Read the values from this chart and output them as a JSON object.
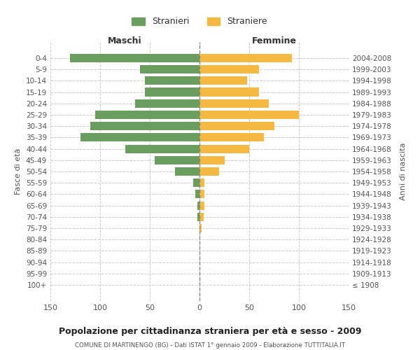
{
  "age_groups": [
    "0-4",
    "5-9",
    "10-14",
    "15-19",
    "20-24",
    "25-29",
    "30-34",
    "35-39",
    "40-44",
    "45-49",
    "50-54",
    "55-59",
    "60-64",
    "65-69",
    "70-74",
    "75-79",
    "80-84",
    "85-89",
    "90-94",
    "95-99",
    "100+"
  ],
  "birth_years": [
    "2004-2008",
    "1999-2003",
    "1994-1998",
    "1989-1993",
    "1984-1988",
    "1979-1983",
    "1974-1978",
    "1969-1973",
    "1964-1968",
    "1959-1963",
    "1954-1958",
    "1949-1953",
    "1944-1948",
    "1939-1943",
    "1934-1938",
    "1929-1933",
    "1924-1928",
    "1919-1923",
    "1914-1918",
    "1909-1913",
    "≤ 1908"
  ],
  "males": [
    130,
    60,
    55,
    55,
    65,
    105,
    110,
    120,
    75,
    45,
    25,
    6,
    4,
    2,
    2,
    0,
    0,
    0,
    0,
    0,
    0
  ],
  "females": [
    93,
    60,
    48,
    60,
    70,
    100,
    75,
    65,
    50,
    25,
    20,
    5,
    5,
    5,
    4,
    2,
    0,
    0,
    0,
    0,
    0
  ],
  "male_color": "#6a9e5e",
  "female_color": "#f5b942",
  "background_color": "#ffffff",
  "grid_color": "#cccccc",
  "title": "Popolazione per cittadinanza straniera per età e sesso - 2009",
  "subtitle": "COMUNE DI MARTINENGO (BG) - Dati ISTAT 1° gennaio 2009 - Elaborazione TUTTITALIA.IT",
  "xlabel_left": "Maschi",
  "xlabel_right": "Femmine",
  "ylabel_left": "Fasce di età",
  "ylabel_right": "Anni di nascita",
  "legend_males": "Stranieri",
  "legend_females": "Straniere",
  "xlim": 150
}
